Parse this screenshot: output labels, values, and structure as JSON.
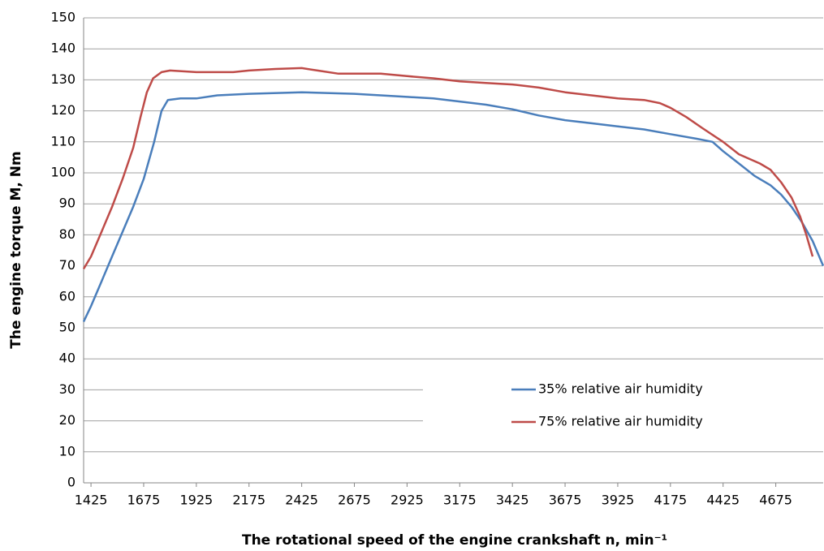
{
  "chart_data": {
    "type": "line",
    "x_label": "The rotational speed of the engine crankshaft n, min⁻¹",
    "y_label": "The engine torque M, Nm",
    "xlim": [
      1390,
      4900
    ],
    "xticks": [
      1425,
      1675,
      1925,
      2175,
      2425,
      2675,
      2925,
      3175,
      3425,
      3675,
      3925,
      4175,
      4425,
      4675
    ],
    "ylim": [
      0,
      150
    ],
    "yticks": [
      0,
      10,
      20,
      30,
      40,
      50,
      60,
      70,
      80,
      90,
      100,
      110,
      120,
      130,
      140,
      150
    ],
    "grid": true,
    "series": [
      {
        "name": "35% relative air humidity",
        "color": "#4a7ebb",
        "x": [
          1390,
          1425,
          1475,
          1525,
          1575,
          1625,
          1675,
          1725,
          1760,
          1790,
          1850,
          1925,
          2025,
          2175,
          2425,
          2675,
          2800,
          2925,
          3050,
          3175,
          3300,
          3425,
          3550,
          3675,
          3800,
          3925,
          4050,
          4175,
          4300,
          4375,
          4425,
          4500,
          4575,
          4650,
          4700,
          4750,
          4800,
          4850,
          4900
        ],
        "values": [
          52,
          57,
          65,
          73,
          81,
          89,
          98,
          110,
          120,
          123.5,
          124,
          124,
          125,
          125.5,
          126,
          125.5,
          125,
          124.5,
          124,
          123,
          122,
          120.5,
          118.5,
          117,
          116,
          115,
          114,
          112.5,
          111,
          110,
          107,
          103,
          99,
          96,
          93,
          89,
          84,
          78,
          70
        ]
      },
      {
        "name": "75% relative air humidity",
        "color": "#be4b48",
        "x": [
          1390,
          1425,
          1475,
          1525,
          1575,
          1625,
          1660,
          1690,
          1720,
          1760,
          1800,
          1925,
          2100,
          2175,
          2300,
          2425,
          2500,
          2600,
          2800,
          2925,
          3050,
          3175,
          3300,
          3425,
          3550,
          3675,
          3800,
          3925,
          4050,
          4125,
          4175,
          4250,
          4325,
          4425,
          4500,
          4600,
          4650,
          4700,
          4750,
          4790,
          4820,
          4850
        ],
        "values": [
          69,
          73,
          81,
          89,
          98,
          108,
          118,
          126,
          130.5,
          132.5,
          133,
          132.5,
          132.5,
          133,
          133.5,
          133.8,
          133,
          132,
          132,
          131.2,
          130.5,
          129.5,
          129,
          128.5,
          127.5,
          126,
          125,
          124,
          123.5,
          122.5,
          121,
          118,
          114.5,
          110,
          106,
          103,
          101,
          97,
          92,
          86,
          80,
          73
        ]
      }
    ]
  }
}
